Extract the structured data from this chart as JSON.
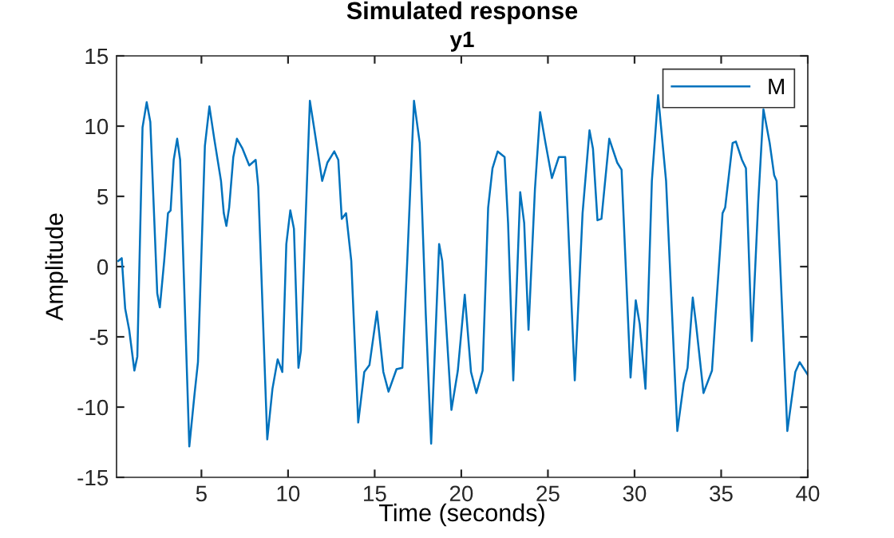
{
  "chart_data": {
    "type": "line",
    "title": "Simulated response",
    "subtitle": "y1",
    "xlabel": "Time (seconds)",
    "ylabel": "Amplitude",
    "xlim": [
      0.1,
      40
    ],
    "xticks": [
      5,
      10,
      15,
      20,
      25,
      30,
      35,
      40
    ],
    "ylim": [
      -15,
      15
    ],
    "yticks": [
      -15,
      -10,
      -5,
      0,
      5,
      10,
      15
    ],
    "grid": false,
    "legend": "top right",
    "series": [
      {
        "name": "M",
        "color": "#0072bd",
        "x": [
          0.2,
          0.4,
          0.6,
          0.83,
          1.13,
          1.3,
          1.6,
          1.84,
          2.05,
          2.45,
          2.6,
          2.85,
          3.07,
          3.22,
          3.4,
          3.6,
          3.77,
          4.3,
          4.6,
          4.8,
          5.2,
          5.46,
          5.74,
          6.13,
          6.29,
          6.44,
          6.6,
          6.84,
          7.05,
          7.37,
          7.76,
          8.13,
          8.28,
          8.8,
          9.1,
          9.4,
          9.67,
          9.9,
          10.13,
          10.34,
          10.6,
          10.74,
          11.26,
          11.5,
          11.97,
          12.27,
          12.67,
          12.9,
          13.1,
          13.35,
          13.65,
          14.05,
          14.4,
          14.7,
          15.13,
          15.5,
          15.8,
          16.26,
          16.6,
          16.88,
          17.27,
          17.6,
          17.95,
          18.26,
          18.72,
          18.9,
          19.43,
          19.8,
          20.2,
          20.56,
          20.87,
          21.23,
          21.55,
          21.8,
          22.1,
          22.5,
          22.7,
          23.0,
          23.4,
          23.63,
          23.88,
          24.25,
          24.55,
          24.86,
          25.23,
          25.63,
          26.0,
          26.55,
          27.0,
          27.4,
          27.6,
          27.86,
          28.09,
          28.54,
          29.0,
          29.25,
          29.77,
          30.07,
          30.3,
          30.63,
          31.0,
          31.36,
          31.82,
          32.47,
          32.84,
          33.06,
          33.36,
          33.55,
          33.98,
          34.47,
          34.68,
          35.08,
          35.23,
          35.66,
          35.85,
          36.2,
          36.43,
          36.77,
          37.14,
          37.44,
          37.8,
          38.06,
          38.2,
          38.82,
          39.28,
          39.53,
          39.74,
          40.0
        ],
        "values": [
          0.4,
          0.6,
          -3.0,
          -4.5,
          -7.4,
          -6.4,
          9.9,
          11.7,
          10.3,
          -1.9,
          -2.9,
          0.4,
          3.8,
          4.0,
          7.6,
          9.1,
          7.6,
          -12.8,
          -9.1,
          -6.8,
          8.6,
          11.4,
          9.1,
          6.1,
          3.8,
          2.9,
          4.2,
          7.8,
          9.1,
          8.4,
          7.2,
          7.6,
          5.7,
          -12.3,
          -8.7,
          -6.6,
          -7.5,
          1.6,
          4.0,
          2.7,
          -7.2,
          -6.0,
          11.8,
          9.9,
          6.1,
          7.4,
          8.2,
          7.6,
          3.4,
          3.8,
          0.4,
          -11.1,
          -7.5,
          -7.0,
          -3.2,
          -7.5,
          -8.9,
          -7.3,
          -7.2,
          0.4,
          11.8,
          8.8,
          -3.4,
          -12.6,
          1.6,
          0.4,
          -10.2,
          -7.4,
          -2.0,
          -7.5,
          -9.0,
          -7.4,
          4.2,
          7.0,
          8.2,
          7.8,
          3.1,
          -8.1,
          5.3,
          3.1,
          -4.5,
          5.5,
          11.0,
          8.8,
          6.3,
          7.8,
          7.8,
          -8.1,
          3.8,
          9.7,
          8.4,
          3.3,
          3.4,
          9.1,
          7.4,
          6.9,
          -7.9,
          -2.4,
          -4.1,
          -8.7,
          6.1,
          12.2,
          6.1,
          -11.7,
          -8.3,
          -7.2,
          -2.2,
          -4.1,
          -9.0,
          -7.4,
          -3.4,
          3.8,
          4.2,
          8.8,
          8.9,
          7.6,
          7.0,
          -5.3,
          4.6,
          11.2,
          8.8,
          6.5,
          6.1,
          -11.7,
          -7.5,
          -6.8,
          -7.2,
          -7.7
        ]
      }
    ]
  }
}
